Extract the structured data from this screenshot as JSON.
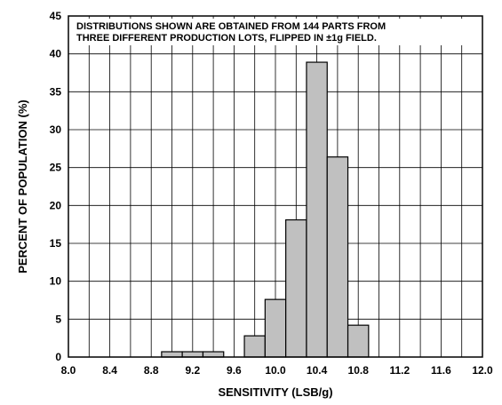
{
  "chart_data": {
    "type": "bar",
    "title": "",
    "annotation_lines": [
      "DISTRIBUTIONS SHOWN ARE OBTAINED FROM 144 PARTS FROM",
      "THREE DIFFERENT PRODUCTION LOTS, FLIPPED IN ±1g FIELD."
    ],
    "xlabel": "SENSITIVITY (LSB/g)",
    "ylabel": "PERCENT OF POPULATION (%)",
    "xlim": [
      8.0,
      12.0
    ],
    "ylim": [
      0,
      45
    ],
    "x_ticks": [
      "8.0",
      "8.4",
      "8.8",
      "9.2",
      "9.6",
      "10.0",
      "10.4",
      "10.8",
      "11.2",
      "11.6",
      "12.0"
    ],
    "y_ticks": [
      "0",
      "5",
      "10",
      "15",
      "20",
      "25",
      "30",
      "35",
      "40",
      "45"
    ],
    "bin_width": 0.2,
    "bars": [
      {
        "x0": 8.9,
        "value": 0.7
      },
      {
        "x0": 9.1,
        "value": 0.7
      },
      {
        "x0": 9.3,
        "value": 0.7
      },
      {
        "x0": 9.7,
        "value": 2.8
      },
      {
        "x0": 9.9,
        "value": 7.6
      },
      {
        "x0": 10.1,
        "value": 18.1
      },
      {
        "x0": 10.3,
        "value": 38.9
      },
      {
        "x0": 10.5,
        "value": 26.4
      },
      {
        "x0": 10.7,
        "value": 4.2
      }
    ],
    "grid": true,
    "bar_color": "#c0c0c0",
    "edge_color": "#000000"
  }
}
